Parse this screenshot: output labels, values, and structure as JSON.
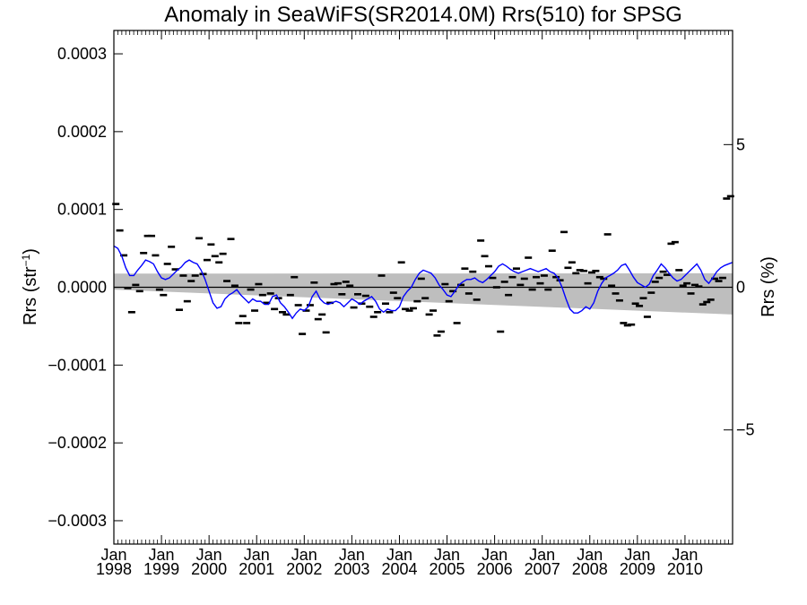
{
  "chart_data": {
    "type": "scatter",
    "title": "Anomaly in SeaWiFS(SR2014.0M) Rrs(510) for SPSG",
    "ylabel_left_main": "Rrs (str",
    "ylabel_left_sup": "−1",
    "ylabel_left_close": ")",
    "ylabel_right": "Rrs (%)",
    "xlim": [
      1998.0,
      2011.0
    ],
    "ylim": [
      -0.00033,
      0.00033
    ],
    "ylim_right": [
      -9.0,
      9.0
    ],
    "grid": false,
    "y_ticks": [
      {
        "value": 0.0003,
        "label": "0.0003"
      },
      {
        "value": 0.0002,
        "label": "0.0002"
      },
      {
        "value": 0.0001,
        "label": "0.0001"
      },
      {
        "value": 0.0,
        "label": "0.0000"
      },
      {
        "value": -0.0001,
        "label": "−0.0001"
      },
      {
        "value": -0.0002,
        "label": "−0.0002"
      },
      {
        "value": -0.0003,
        "label": "−0.0003"
      }
    ],
    "y_ticks_right": [
      {
        "value": 5,
        "label": "5"
      },
      {
        "value": 0,
        "label": "0"
      },
      {
        "value": -5,
        "label": "−5"
      }
    ],
    "x_ticks": [
      {
        "value": 1998,
        "label1": "Jan",
        "label2": "1998"
      },
      {
        "value": 1999,
        "label1": "Jan",
        "label2": "1999"
      },
      {
        "value": 2000,
        "label1": "Jan",
        "label2": "2000"
      },
      {
        "value": 2001,
        "label1": "Jan",
        "label2": "2001"
      },
      {
        "value": 2002,
        "label1": "Jan",
        "label2": "2002"
      },
      {
        "value": 2003,
        "label1": "Jan",
        "label2": "2003"
      },
      {
        "value": 2004,
        "label1": "Jan",
        "label2": "2004"
      },
      {
        "value": 2005,
        "label1": "Jan",
        "label2": "2005"
      },
      {
        "value": 2006,
        "label1": "Jan",
        "label2": "2006"
      },
      {
        "value": 2007,
        "label1": "Jan",
        "label2": "2007"
      },
      {
        "value": 2008,
        "label1": "Jan",
        "label2": "2008"
      },
      {
        "value": 2009,
        "label1": "Jan",
        "label2": "2009"
      },
      {
        "value": 2010,
        "label1": "Jan",
        "label2": "2010"
      }
    ],
    "confidence_band": {
      "color": "#bebebe",
      "x": [
        1998.0,
        2011.0
      ],
      "upper": [
        1.75e-05,
        1.8e-05
      ],
      "lower": [
        -3e-06,
        -3.5e-05
      ]
    },
    "colors": {
      "monthly": "#000000",
      "smoothed": "#0000ff",
      "zero_line": "#000000",
      "band": "#bebebe"
    },
    "monthly_anomalies": {
      "x": [
        1998.0,
        1998.083,
        1998.167,
        1998.25,
        1998.333,
        1998.417,
        1998.5,
        1998.583,
        1998.667,
        1998.75,
        1998.833,
        1998.917,
        1999.0,
        1999.083,
        1999.167,
        1999.25,
        1999.333,
        1999.417,
        1999.5,
        1999.583,
        1999.667,
        1999.75,
        1999.833,
        1999.917,
        2000.0,
        2000.083,
        2000.167,
        2000.25,
        2000.333,
        2000.417,
        2000.5,
        2000.583,
        2000.667,
        2000.75,
        2000.833,
        2000.917,
        2001.0,
        2001.083,
        2001.167,
        2001.25,
        2001.333,
        2001.417,
        2001.5,
        2001.583,
        2001.667,
        2001.75,
        2001.833,
        2001.917,
        2002.0,
        2002.083,
        2002.167,
        2002.25,
        2002.333,
        2002.417,
        2002.5,
        2002.583,
        2002.667,
        2002.75,
        2002.833,
        2002.917,
        2003.0,
        2003.083,
        2003.167,
        2003.25,
        2003.333,
        2003.417,
        2003.5,
        2003.583,
        2003.667,
        2003.75,
        2003.833,
        2003.917,
        2004.0,
        2004.083,
        2004.167,
        2004.25,
        2004.333,
        2004.417,
        2004.5,
        2004.583,
        2004.667,
        2004.75,
        2004.833,
        2004.917,
        2005.0,
        2005.083,
        2005.167,
        2005.25,
        2005.333,
        2005.417,
        2005.5,
        2005.583,
        2005.667,
        2005.75,
        2005.833,
        2005.917,
        2006.0,
        2006.083,
        2006.167,
        2006.25,
        2006.333,
        2006.417,
        2006.5,
        2006.583,
        2006.667,
        2006.75,
        2006.833,
        2006.917,
        2007.0,
        2007.083,
        2007.167,
        2007.25,
        2007.333,
        2007.417,
        2007.5,
        2007.583,
        2007.667,
        2007.75,
        2007.833,
        2007.917,
        2008.0,
        2008.083,
        2008.167,
        2008.25,
        2008.333,
        2008.417,
        2008.5,
        2008.583,
        2008.667,
        2008.75,
        2008.833,
        2008.917,
        2009.0,
        2009.083,
        2009.167,
        2009.25,
        2009.333,
        2009.417,
        2009.5,
        2009.583,
        2009.667,
        2009.75,
        2009.833,
        2009.917,
        2010.0,
        2010.083,
        2010.167,
        2010.25,
        2010.333,
        2010.417,
        2010.5,
        2010.583,
        2010.667,
        2010.75,
        2010.833,
        2010.917
      ],
      "y": [
        0.000107,
        7.3e-05,
        4.1e-05,
        -1e-06,
        -3.2e-05,
        3e-06,
        -5e-06,
        4.4e-05,
        6.6e-05,
        6.6e-05,
        4.1e-05,
        -3e-06,
        -1e-05,
        3e-05,
        5.2e-05,
        2.3e-05,
        -2.9e-05,
        1.5e-05,
        -1.8e-05,
        8e-06,
        1.5e-05,
        6.3e-05,
        1.7e-05,
        3.5e-05,
        5.5e-05,
        4e-05,
        3.2e-05,
        4.3e-05,
        8e-06,
        6.2e-05,
        2e-06,
        -4.6e-05,
        -3.7e-05,
        -4.6e-05,
        -3e-06,
        -3e-05,
        4e-06,
        -1e-05,
        -2e-05,
        -8e-06,
        -2.8e-05,
        -1.4e-05,
        -3.2e-05,
        -3.5e-05,
        -1e-05,
        1.3e-05,
        -2.3e-05,
        -6e-05,
        -3e-05,
        -2.3e-05,
        6e-06,
        -4.1e-05,
        -3.5e-05,
        -5.8e-05,
        -2e-05,
        4e-06,
        5e-06,
        -9e-06,
        7e-06,
        2e-06,
        -2.6e-05,
        -9e-06,
        -2.1e-05,
        -1.1e-05,
        -2.5e-05,
        -3.8e-05,
        -3.2e-05,
        1.5e-05,
        -2.1e-05,
        -3.2e-05,
        -7e-06,
        -1.4e-05,
        3.2e-05,
        -2.8e-05,
        -3e-05,
        -2.7e-05,
        -1.8e-05,
        1.1e-05,
        -1.4e-05,
        -3.5e-05,
        -3e-05,
        -6.2e-05,
        -5.7e-05,
        4e-06,
        -1.8e-05,
        -5e-06,
        -4.6e-05,
        3e-06,
        2.4e-05,
        -8e-06,
        2e-05,
        -1.6e-05,
        6e-05,
        4e-05,
        2.7e-05,
        1.2e-05,
        0.0,
        -5.7e-05,
        7e-06,
        -1e-05,
        1.3e-05,
        2.4e-05,
        3e-06,
        1.1e-05,
        3.8e-05,
        -3e-06,
        1.3e-05,
        5e-06,
        1.5e-05,
        -3e-06,
        4.7e-05,
        1.3e-05,
        9e-06,
        7.1e-05,
        2.5e-05,
        3.2e-05,
        1.8e-05,
        2.2e-05,
        2.1e-05,
        5e-06,
        1.9e-05,
        2.1e-05,
        1.3e-05,
        1.1e-05,
        6.8e-05,
        2e-06,
        -8e-06,
        -1.7e-05,
        -4.6e-05,
        -4.9e-05,
        -4.8e-05,
        -2.1e-05,
        -2.4e-05,
        -1.4e-05,
        -3.8e-05,
        -7e-06,
        7e-06,
        1.2e-05,
        2e-05,
        1.6e-05,
        5.6e-05,
        5.8e-05,
        2.2e-05,
        2e-06,
        5e-06,
        -8e-06,
        3e-06,
        1e-06,
        -2.2e-05,
        -1.9e-05,
        -1.6e-05,
        1.1e-05,
        8e-06,
        1.2e-05,
        0.000114,
        0.000117
      ]
    },
    "smoothed_series": {
      "x": [
        1998.0,
        1998.083,
        1998.167,
        1998.25,
        1998.333,
        1998.417,
        1998.5,
        1998.583,
        1998.667,
        1998.75,
        1998.833,
        1998.917,
        1999.0,
        1999.083,
        1999.167,
        1999.25,
        1999.333,
        1999.417,
        1999.5,
        1999.583,
        1999.667,
        1999.75,
        1999.833,
        1999.917,
        2000.0,
        2000.083,
        2000.167,
        2000.25,
        2000.333,
        2000.417,
        2000.5,
        2000.583,
        2000.667,
        2000.75,
        2000.833,
        2000.917,
        2001.0,
        2001.083,
        2001.167,
        2001.25,
        2001.333,
        2001.417,
        2001.5,
        2001.583,
        2001.667,
        2001.75,
        2001.833,
        2001.917,
        2002.0,
        2002.083,
        2002.167,
        2002.25,
        2002.333,
        2002.417,
        2002.5,
        2002.583,
        2002.667,
        2002.75,
        2002.833,
        2002.917,
        2003.0,
        2003.083,
        2003.167,
        2003.25,
        2003.333,
        2003.417,
        2003.5,
        2003.583,
        2003.667,
        2003.75,
        2003.833,
        2003.917,
        2004.0,
        2004.083,
        2004.167,
        2004.25,
        2004.333,
        2004.417,
        2004.5,
        2004.583,
        2004.667,
        2004.75,
        2004.833,
        2004.917,
        2005.0,
        2005.083,
        2005.167,
        2005.25,
        2005.333,
        2005.417,
        2005.5,
        2005.583,
        2005.667,
        2005.75,
        2005.833,
        2005.917,
        2006.0,
        2006.083,
        2006.167,
        2006.25,
        2006.333,
        2006.417,
        2006.5,
        2006.583,
        2006.667,
        2006.75,
        2006.833,
        2006.917,
        2007.0,
        2007.083,
        2007.167,
        2007.25,
        2007.333,
        2007.417,
        2007.5,
        2007.583,
        2007.667,
        2007.75,
        2007.833,
        2007.917,
        2008.0,
        2008.083,
        2008.167,
        2008.25,
        2008.333,
        2008.417,
        2008.5,
        2008.583,
        2008.667,
        2008.75,
        2008.833,
        2008.917,
        2009.0,
        2009.083,
        2009.167,
        2009.25,
        2009.333,
        2009.417,
        2009.5,
        2009.583,
        2009.667,
        2009.75,
        2009.833,
        2009.917,
        2010.0,
        2010.083,
        2010.167,
        2010.25,
        2010.333,
        2010.417,
        2010.5,
        2010.583,
        2010.667,
        2010.75,
        2010.833,
        2010.917,
        2011.0
      ],
      "y": [
        5.3e-05,
        5e-05,
        4e-05,
        2.5e-05,
        1.5e-05,
        1.5e-05,
        2.2e-05,
        2.8e-05,
        3.5e-05,
        3.3e-05,
        3e-05,
        2e-05,
        1.2e-05,
        1e-05,
        1.2e-05,
        1.7e-05,
        2.2e-05,
        2.6e-05,
        3.2e-05,
        3.5e-05,
        3.2e-05,
        3e-05,
        2.2e-05,
        1e-05,
        -5e-06,
        -2e-05,
        -2.7e-05,
        -2.5e-05,
        -1.5e-05,
        -1e-05,
        -7e-06,
        -3e-06,
        -1e-05,
        -1.5e-05,
        -2e-05,
        -1.5e-05,
        -1.8e-05,
        -1.8e-05,
        -2.2e-05,
        -2.2e-05,
        -1.2e-05,
        -1e-05,
        -2e-05,
        -2.5e-05,
        -3.2e-05,
        -4e-05,
        -3.3e-05,
        -2.8e-05,
        -3e-05,
        -2.5e-05,
        -1.2e-05,
        -5e-06,
        -1.5e-05,
        -2e-05,
        -2.2e-05,
        -2e-05,
        -1.8e-05,
        -2e-05,
        -2.5e-05,
        -2e-05,
        -1.5e-05,
        -1.8e-05,
        -2.2e-05,
        -1.8e-05,
        -1.5e-05,
        -1.2e-05,
        -1.8e-05,
        -2.8e-05,
        -3.2e-05,
        -2.8e-05,
        -3e-05,
        -3e-05,
        -2.5e-05,
        -1.2e-05,
        -5e-06,
        0.0,
        1e-05,
        1.8e-05,
        2.2e-05,
        2e-05,
        1.8e-05,
        1.2e-05,
        3e-06,
        -3e-06,
        -1e-05,
        -1.2e-05,
        -5e-06,
        3e-06,
        7e-06,
        1e-05,
        1e-05,
        1.2e-05,
        8e-06,
        6e-06,
        1e-05,
        1.5e-05,
        2e-05,
        2.7e-05,
        3e-05,
        2.7e-05,
        2.3e-05,
        2e-05,
        1.8e-05,
        2e-05,
        2.2e-05,
        2.4e-05,
        2.2e-05,
        2e-05,
        2.2e-05,
        2.4e-05,
        2e-05,
        1.8e-05,
        1.2e-05,
        0.0,
        -1.5e-05,
        -2.8e-05,
        -3.3e-05,
        -3.3e-05,
        -3e-05,
        -2.5e-05,
        -2.8e-05,
        -2e-05,
        -5e-06,
        5e-06,
        1.2e-05,
        1.5e-05,
        1.8e-05,
        2.2e-05,
        2.8e-05,
        3e-05,
        2.2e-05,
        1.3e-05,
        6e-06,
        3e-06,
        0.0,
        4e-06,
        1.5e-05,
        2.2e-05,
        3e-05,
        2.5e-05,
        1.8e-05,
        1.2e-05,
        8e-06,
        1e-05,
        1.5e-05,
        2e-05,
        2.5e-05,
        3e-05,
        2.2e-05,
        1e-05,
        5e-06,
        1.2e-05,
        2e-05,
        2.5e-05,
        2.8e-05,
        3e-05,
        3.2e-05
      ]
    }
  }
}
